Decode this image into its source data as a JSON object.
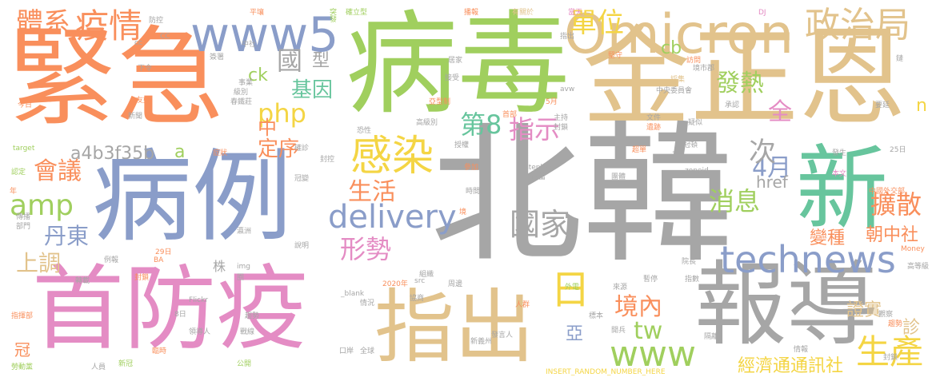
{
  "palette": {
    "orange": "#f98f5c",
    "green": "#a0cf5e",
    "tan": "#e2c38c",
    "gray": "#a6a6a6",
    "blue": "#8a9dc9",
    "teal": "#67c59d",
    "pink": "#e48cc4",
    "yellow": "#f4d544"
  },
  "words": [
    {
      "text": "北韓"
    },
    {
      "text": "病毒"
    },
    {
      "text": "金正恩"
    },
    {
      "text": "緊急"
    },
    {
      "text": "病例"
    },
    {
      "text": "首防疫"
    },
    {
      "text": "報導"
    },
    {
      "text": "新"
    },
    {
      "text": "指出"
    },
    {
      "text": "Omicron"
    },
    {
      "text": "www5"
    },
    {
      "text": "政治局"
    },
    {
      "text": "疫情"
    },
    {
      "text": "體系"
    },
    {
      "text": "單位"
    },
    {
      "text": "感染"
    },
    {
      "text": "delivery"
    },
    {
      "text": "technews"
    },
    {
      "text": "www"
    },
    {
      "text": "國家"
    },
    {
      "text": "日"
    },
    {
      "text": "生產"
    },
    {
      "text": "擴散"
    },
    {
      "text": "境內"
    },
    {
      "text": "形勢"
    },
    {
      "text": "生活"
    },
    {
      "text": "amp"
    },
    {
      "text": "會議"
    },
    {
      "text": "php"
    },
    {
      "text": "第8"
    },
    {
      "text": "指示"
    },
    {
      "text": "4月"
    },
    {
      "text": "消息"
    },
    {
      "text": "發熱"
    },
    {
      "text": "基因"
    },
    {
      "text": "國"
    },
    {
      "text": "型"
    },
    {
      "text": "a4b3f35b"
    },
    {
      "text": "丹東"
    },
    {
      "text": "上調"
    },
    {
      "text": "定序"
    },
    {
      "text": "經濟通通訊社"
    },
    {
      "text": "證實"
    },
    {
      "text": "變種"
    },
    {
      "text": "朝中社"
    },
    {
      "text": "tw"
    },
    {
      "text": "亞"
    },
    {
      "text": "次"
    },
    {
      "text": "全"
    },
    {
      "text": "診"
    },
    {
      "text": "冠"
    },
    {
      "text": "href"
    },
    {
      "text": "cb"
    },
    {
      "text": "ck"
    },
    {
      "text": "中"
    },
    {
      "text": "a"
    },
    {
      "text": "株"
    },
    {
      "text": "n"
    },
    {
      "text": "cc"
    },
    {
      "text": "CC"
    },
    {
      "text": "防控"
    },
    {
      "text": "平壤"
    },
    {
      "text": "突發"
    },
    {
      "text": "確立型"
    },
    {
      "text": "播報"
    },
    {
      "text": "有關於"
    },
    {
      "text": "當天"
    },
    {
      "text": "DJ"
    },
    {
      "text": "中社"
    },
    {
      "text": "指出"
    },
    {
      "text": "堅守"
    },
    {
      "text": "居家"
    },
    {
      "text": "接受"
    },
    {
      "text": "avw"
    },
    {
      "text": "鏈"
    },
    {
      "text": "訪問"
    },
    {
      "text": "境市郡"
    },
    {
      "text": "採集"
    },
    {
      "text": "中央委員會"
    },
    {
      "text": "下令"
    },
    {
      "text": "簽署"
    },
    {
      "text": "事業"
    },
    {
      "text": "級別"
    },
    {
      "text": "春鐵莊"
    },
    {
      "text": "友好"
    },
    {
      "text": "亞型制"
    },
    {
      "text": "5月"
    },
    {
      "text": "今日"
    },
    {
      "text": "新聞"
    },
    {
      "text": "高級別"
    },
    {
      "text": "恐性"
    },
    {
      "text": "首部"
    },
    {
      "text": "主持"
    },
    {
      "text": "封鎖"
    },
    {
      "text": "文件"
    },
    {
      "text": "遺跡"
    },
    {
      "text": "承認"
    },
    {
      "text": "疑似"
    },
    {
      "text": "要延"
    },
    {
      "text": "target"
    },
    {
      "text": "認定"
    },
    {
      "text": "年"
    },
    {
      "text": "症狀"
    },
    {
      "text": "確診"
    },
    {
      "text": "封控"
    },
    {
      "text": "授權"
    },
    {
      "text": "參加"
    },
    {
      "text": "超單"
    },
    {
      "text": "冠頓"
    },
    {
      "text": "2月"
    },
    {
      "text": "發生"
    },
    {
      "text": "25日"
    },
    {
      "text": "stephan"
    },
    {
      "text": "zoneid"
    },
    {
      "text": "本文"
    },
    {
      "text": "中國外交部"
    },
    {
      "text": "冠變"
    },
    {
      "text": "時間"
    },
    {
      "text": "儲蓄"
    },
    {
      "text": "團體"
    },
    {
      "text": "傳播"
    },
    {
      "text": "部門"
    },
    {
      "text": "瀛洲"
    },
    {
      "text": "境"
    },
    {
      "text": "29日"
    },
    {
      "text": "BA"
    },
    {
      "text": "例報"
    },
    {
      "text": "img"
    },
    {
      "text": "圈"
    },
    {
      "text": "說明"
    },
    {
      "text": "院長"
    },
    {
      "text": "Money"
    },
    {
      "text": "高等級"
    },
    {
      "text": "轉載"
    },
    {
      "text": "封鎖"
    },
    {
      "text": "組織"
    },
    {
      "text": "暫停"
    },
    {
      "text": "指數"
    },
    {
      "text": "2020年"
    },
    {
      "text": "src"
    },
    {
      "text": "周邊"
    },
    {
      "text": "外電"
    },
    {
      "text": "來源"
    },
    {
      "text": "_blank"
    },
    {
      "text": "協商"
    },
    {
      "text": "人群"
    },
    {
      "text": "指揮部"
    },
    {
      "text": "8日"
    },
    {
      "text": "趨勢"
    },
    {
      "text": "情況"
    },
    {
      "text": "Flickr"
    },
    {
      "text": "標本"
    },
    {
      "text": "開兵"
    },
    {
      "text": "觀察"
    },
    {
      "text": "趨勢"
    },
    {
      "text": "領導人"
    },
    {
      "text": "戰線"
    },
    {
      "text": "口岸"
    },
    {
      "text": "發言人"
    },
    {
      "text": "隔離"
    },
    {
      "text": "情報"
    },
    {
      "text": "封鎖"
    },
    {
      "text": "勞動黨"
    },
    {
      "text": "人員"
    },
    {
      "text": "新冠"
    },
    {
      "text": "臨時"
    },
    {
      "text": "公開"
    },
    {
      "text": "全球"
    },
    {
      "text": "新義州"
    },
    {
      "text": "INSERT_RANDOM_NUMBER_HERE"
    }
  ]
}
